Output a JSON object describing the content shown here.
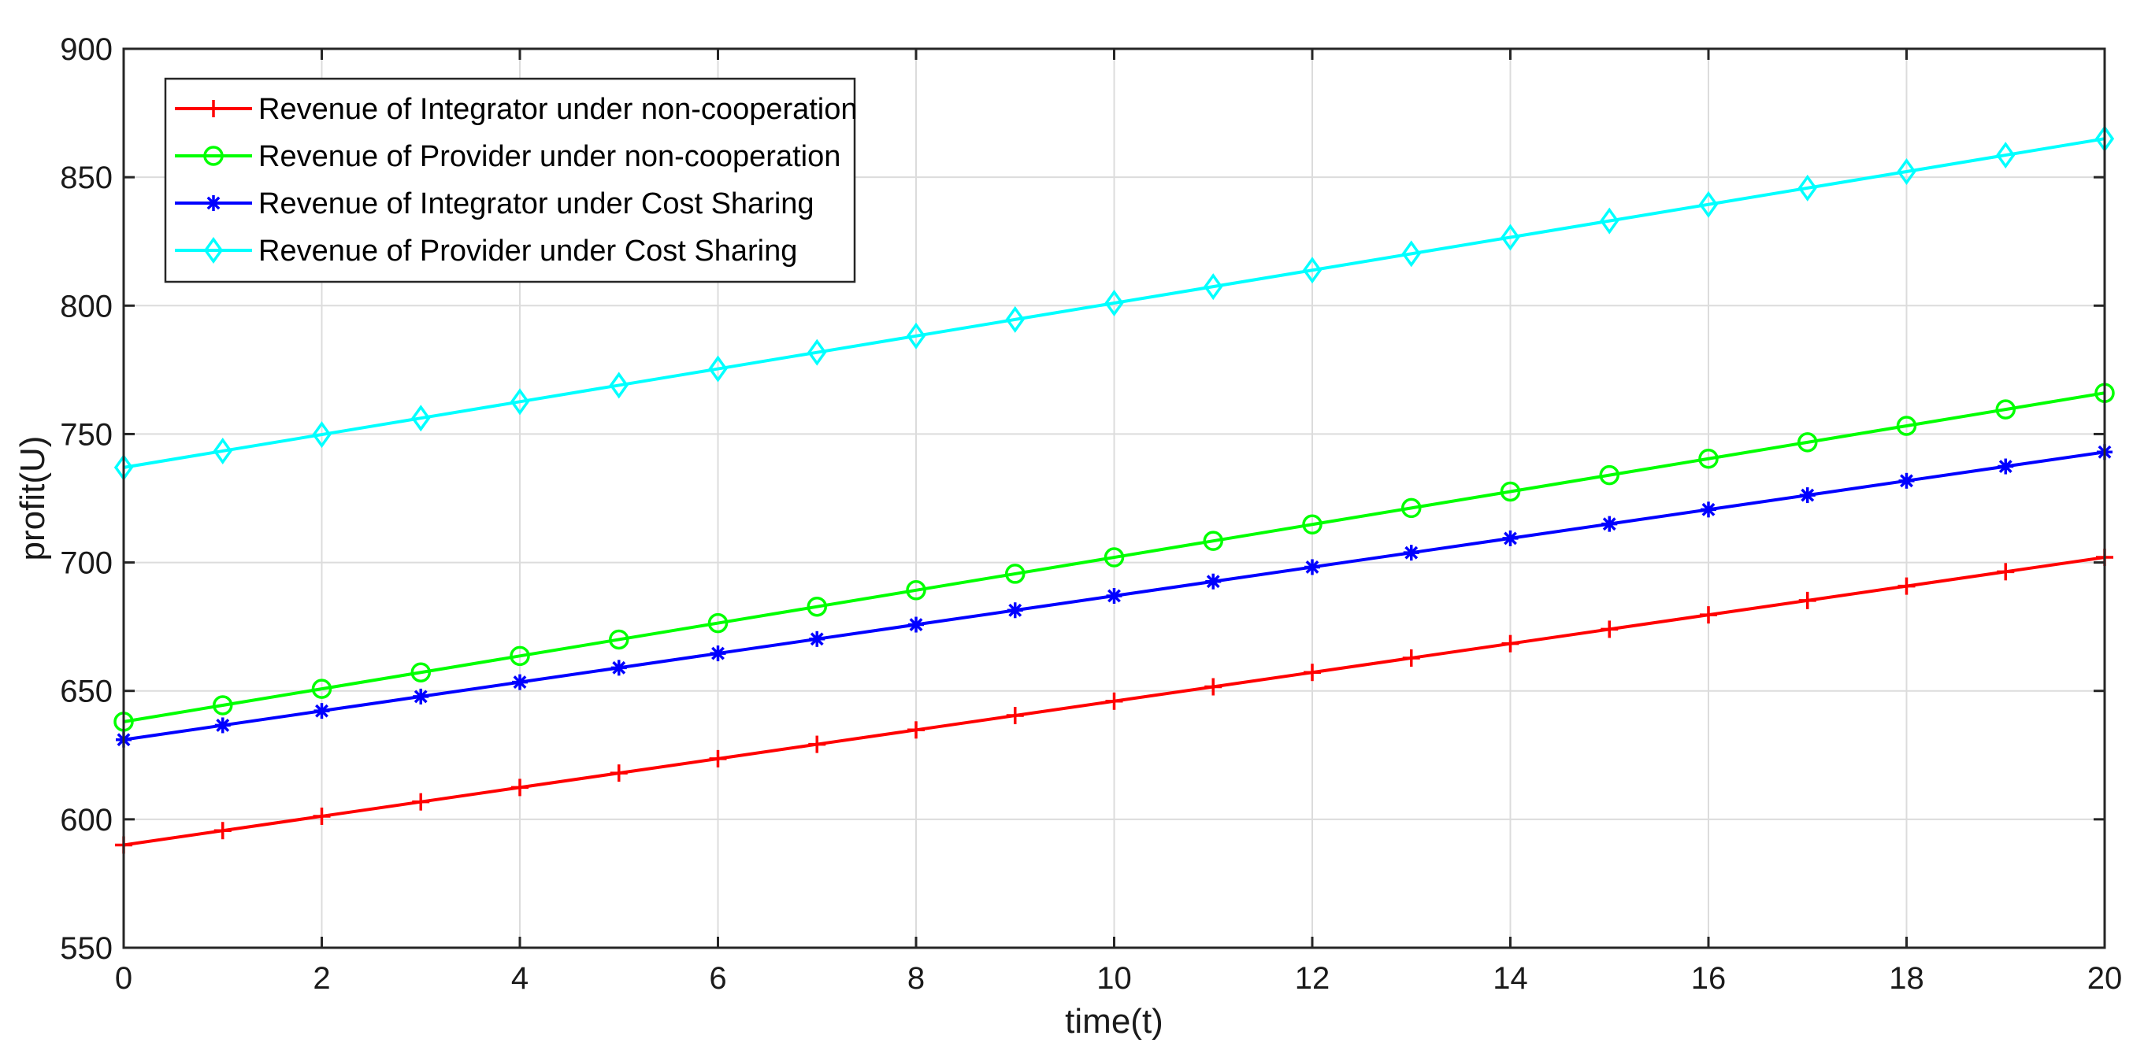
{
  "chart_data": {
    "type": "line",
    "title": "",
    "xlabel": "time(t)",
    "ylabel": "profit(U)",
    "xlim": [
      0,
      20
    ],
    "ylim": [
      550,
      900
    ],
    "xticks": [
      0,
      2,
      4,
      6,
      8,
      10,
      12,
      14,
      16,
      18,
      20
    ],
    "yticks": [
      550,
      600,
      650,
      700,
      750,
      800,
      850,
      900
    ],
    "grid": true,
    "legend_position": "top-left",
    "x": [
      0,
      1,
      2,
      3,
      4,
      5,
      6,
      7,
      8,
      9,
      10,
      11,
      12,
      13,
      14,
      15,
      16,
      17,
      18,
      19,
      20
    ],
    "series": [
      {
        "name": "Revenue of Integrator under non-cooperation",
        "color": "#ff0000",
        "marker": "plus",
        "values": [
          590,
          595.6,
          601.2,
          606.8,
          612.4,
          618,
          623.6,
          629.2,
          634.8,
          640.4,
          646,
          651.6,
          657.2,
          662.8,
          668.4,
          674,
          679.6,
          685.2,
          690.8,
          696.4,
          702
        ]
      },
      {
        "name": "Revenue of Provider under non-cooperation",
        "color": "#00ff00",
        "marker": "circle",
        "values": [
          638,
          644.4,
          650.8,
          657.2,
          663.6,
          670,
          676.4,
          682.8,
          689.2,
          695.6,
          702,
          708.4,
          714.8,
          721.2,
          727.6,
          734,
          740.4,
          746.8,
          753.2,
          759.6,
          766
        ]
      },
      {
        "name": "Revenue of Integrator under Cost Sharing",
        "color": "#0000ff",
        "marker": "asterisk",
        "values": [
          631,
          636.6,
          642.2,
          647.8,
          653.4,
          659,
          664.6,
          670.2,
          675.8,
          681.4,
          687,
          692.6,
          698.2,
          703.8,
          709.4,
          715,
          720.6,
          726.2,
          731.8,
          737.4,
          743
        ]
      },
      {
        "name": "Revenue of Provider under Cost Sharing",
        "color": "#00ffff",
        "marker": "diamond",
        "values": [
          737,
          743.4,
          749.8,
          756.2,
          762.6,
          769,
          775.4,
          781.8,
          788.2,
          794.6,
          801,
          807.4,
          813.8,
          820.2,
          826.6,
          833,
          839.4,
          845.8,
          852.2,
          858.6,
          865
        ]
      }
    ]
  }
}
